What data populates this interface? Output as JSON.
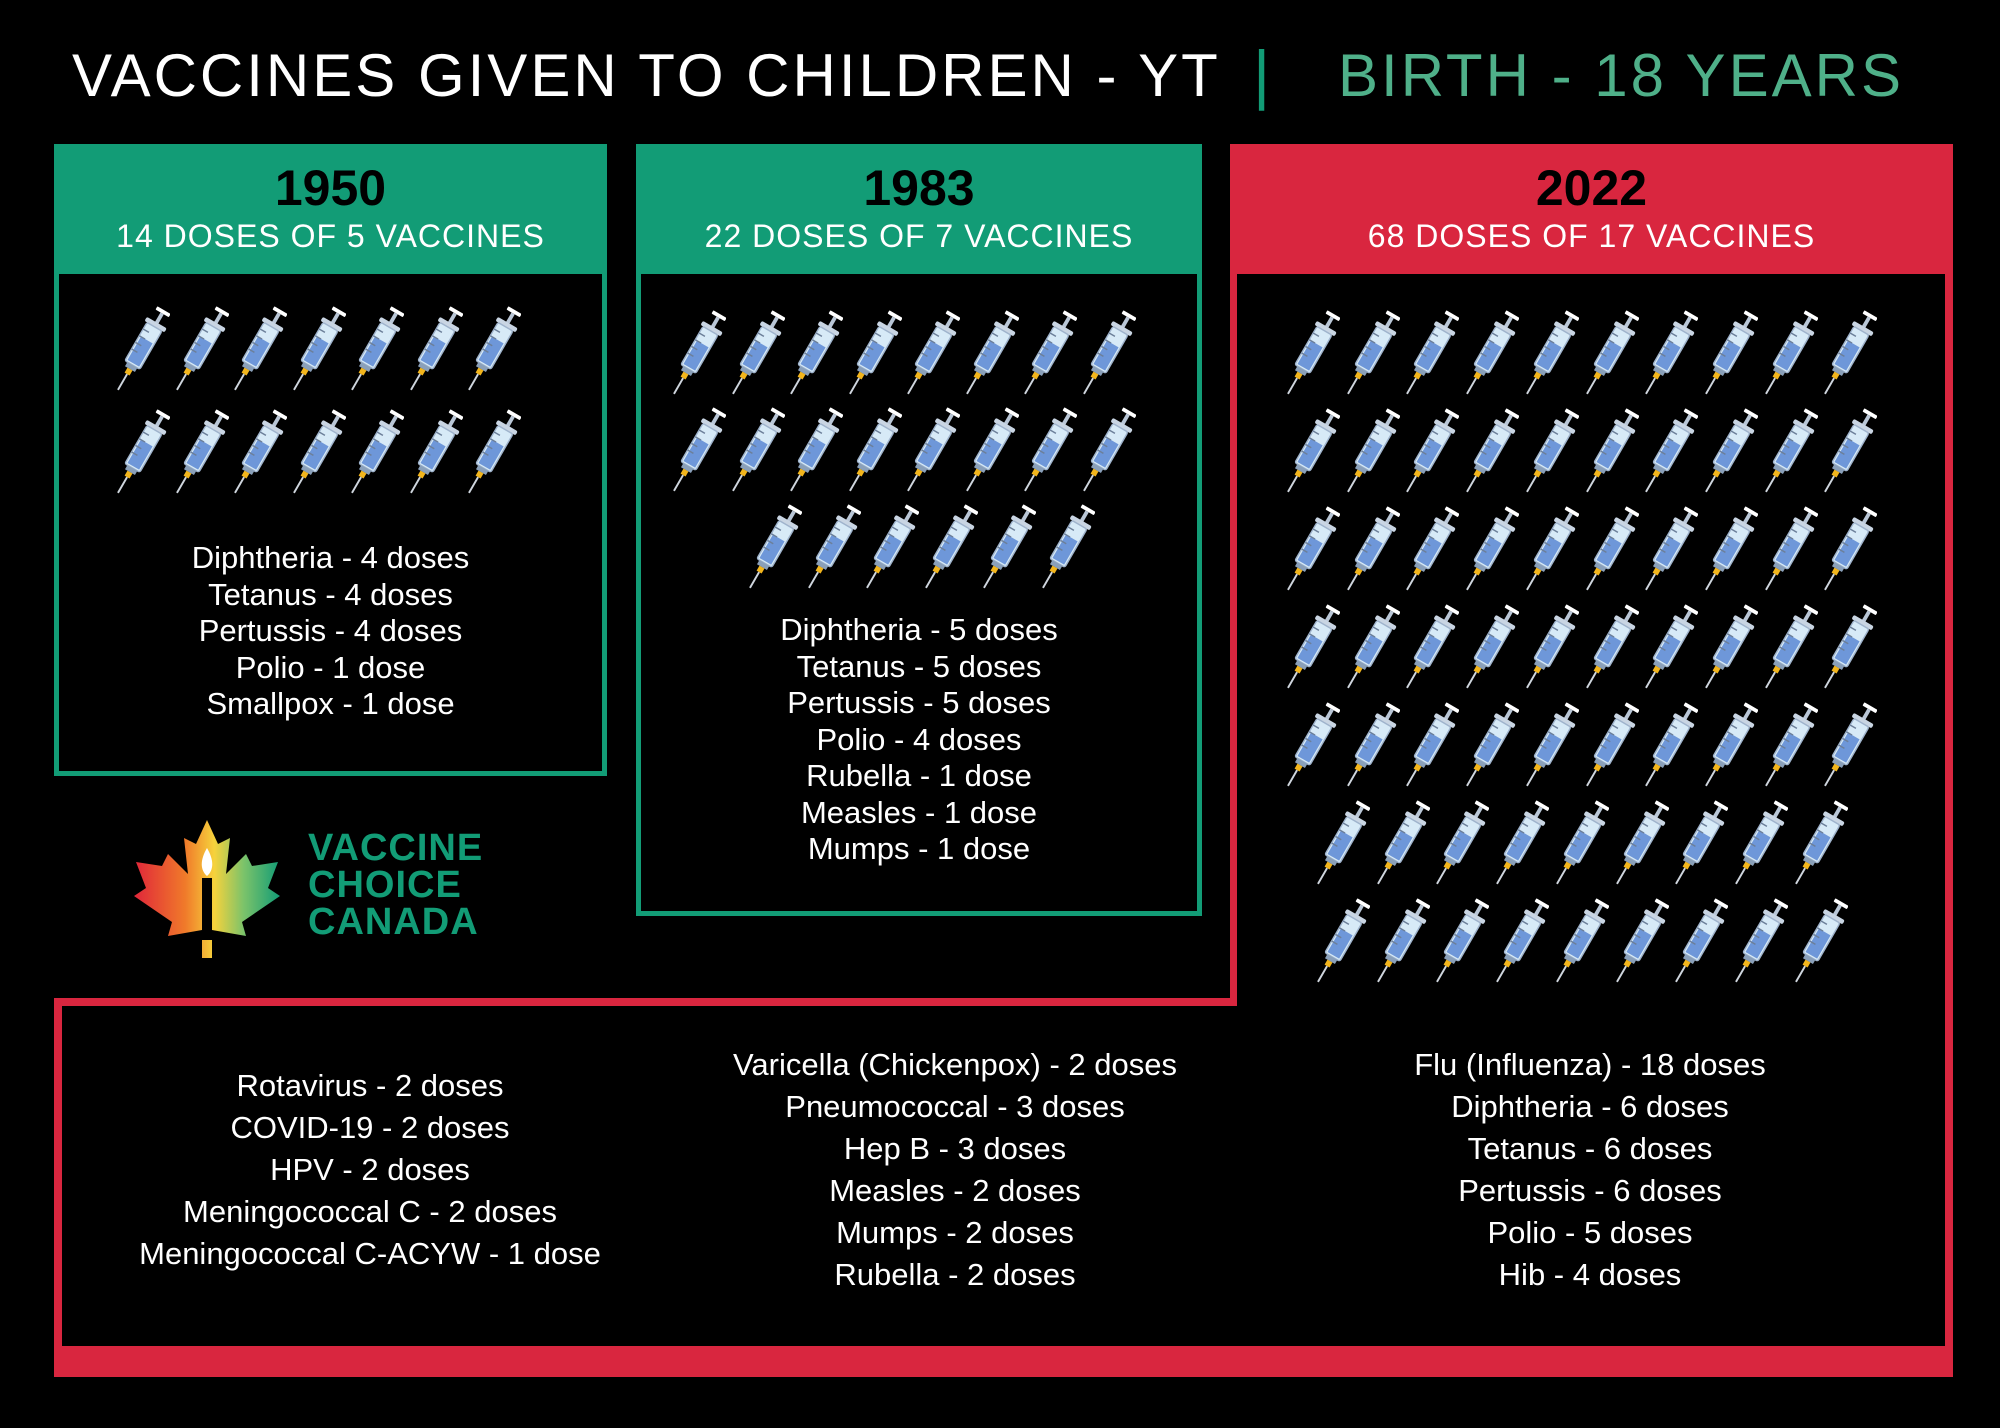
{
  "header": {
    "title": "VACCINES GIVEN TO CHILDREN - YT",
    "separator": "|",
    "subtitle": "BIRTH - 18 YEARS"
  },
  "colors": {
    "green": "#129C76",
    "red": "#D9263F",
    "subtitle": "#4FB089",
    "syringe_barrel": "#D7EAF7",
    "syringe_fill": "#6E97D9"
  },
  "panels": [
    {
      "year": "1950",
      "doses_label": "14 DOSES OF 5 VACCINES",
      "dose_count": 14,
      "vaccines": [
        "Diphtheria - 4 doses",
        "Tetanus - 4 doses",
        "Pertussis - 4 doses",
        "Polio - 1 dose",
        "Smallpox - 1 dose"
      ]
    },
    {
      "year": "1983",
      "doses_label": "22 DOSES OF 7 VACCINES",
      "dose_count": 22,
      "vaccines": [
        "Diphtheria - 5 doses",
        "Tetanus - 5 doses",
        "Pertussis - 5 doses",
        "Polio - 4 doses",
        "Rubella - 1 dose",
        "Measles - 1 dose",
        "Mumps - 1 dose"
      ]
    },
    {
      "year": "2022",
      "doses_label": "68 DOSES OF 17 VACCINES",
      "dose_count": 68,
      "vaccines_col1": [
        "Rotavirus - 2 doses",
        "COVID-19 - 2 doses",
        "HPV - 2 doses",
        "Meningococcal C - 2 doses",
        "Meningococcal C-ACYW - 1 dose"
      ],
      "vaccines_col2": [
        "Varicella (Chickenpox) - 2 doses",
        "Pneumococcal - 3 doses",
        "Hep B - 3 doses",
        "Measles - 2 doses",
        "Mumps - 2 doses",
        "Rubella - 2 doses"
      ],
      "vaccines_col3": [
        "Flu (Influenza) - 18 doses",
        "Diphtheria - 6 doses",
        "Tetanus - 6 doses",
        "Pertussis - 6 doses",
        "Polio - 5 doses",
        "Hib - 4 doses"
      ]
    }
  ],
  "logo": {
    "icon": "maple-leaf-candle-icon",
    "lines": [
      "VACCINE",
      "CHOICE",
      "CANADA"
    ]
  }
}
